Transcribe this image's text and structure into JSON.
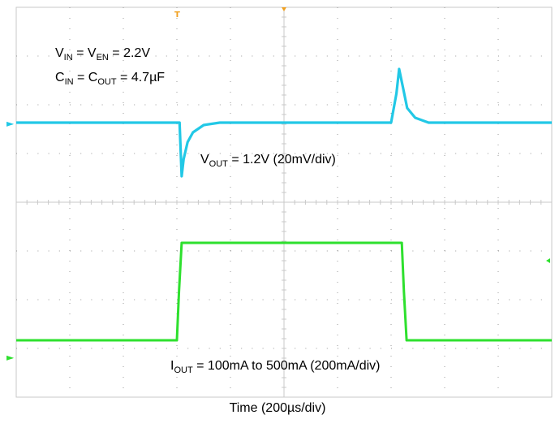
{
  "chart_data": {
    "type": "line",
    "xlabel": "Time (200µs/div)",
    "x_unit": "µs",
    "xlim": [
      0,
      2000
    ],
    "x_divisions": 10,
    "y_divisions": 8,
    "grid": true,
    "annotations": {
      "vin_base": "V",
      "vin_sub": "IN",
      "vin_mid": " = V",
      "ven_sub": "EN",
      "vin_value": " = 2.2V",
      "cin_base": "C",
      "cin_sub": "IN",
      "cin_mid": " = C",
      "cout_sub": "OUT",
      "cin_value": " = 4.7µF",
      "vout_base": "V",
      "vout_sub": "OUT",
      "vout_value": " = 1.2V (20mV/div)",
      "iout_base": "I",
      "iout_sub": "OUT",
      "iout_value": " = 100mA to 500mA (200mA/div)"
    },
    "series": [
      {
        "color": "#22c8e6",
        "unit": "mV deviation",
        "scale_per_div": 20,
        "x": [
          0,
          610,
          618,
          625,
          640,
          660,
          700,
          760,
          1400,
          1420,
          1430,
          1445,
          1460,
          1490,
          1540,
          2000
        ],
        "y": [
          0,
          0,
          -22,
          -15,
          -8,
          -4,
          -1,
          0,
          0,
          12,
          22,
          14,
          6,
          2,
          0,
          0
        ]
      },
      {
        "color": "#2ee02e",
        "unit": "mA",
        "scale_per_div": 200,
        "x": [
          0,
          600,
          608,
          618,
          1440,
          1448,
          1458,
          2000
        ],
        "y": [
          100,
          100,
          300,
          500,
          500,
          300,
          100,
          100
        ]
      }
    ],
    "markers": {
      "ch1_ground": "►",
      "ch2_ground": "►",
      "trigger_top": "T"
    },
    "colors": {
      "grid_major": "#cfcfcf",
      "grid_minor": "#9a9a9a",
      "center_axis": "#c8c8c8",
      "trigger": "#f0a020"
    }
  }
}
